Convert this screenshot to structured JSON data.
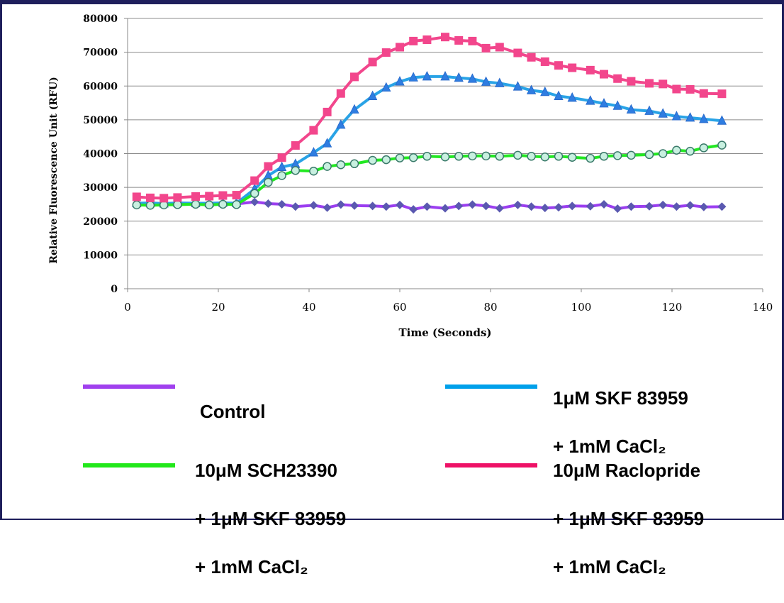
{
  "chart_data": {
    "type": "line",
    "xlabel": "Time (Seconds)",
    "ylabel": "Relative Fluorescence Unit (RFU)",
    "xlim": [
      0,
      140
    ],
    "ylim": [
      0,
      80000
    ],
    "xticks": [
      0,
      20,
      40,
      60,
      80,
      100,
      120,
      140
    ],
    "yticks": [
      0,
      10000,
      20000,
      30000,
      40000,
      50000,
      60000,
      70000,
      80000
    ],
    "grid": "horizontal",
    "legend_position": "bottom",
    "series": [
      {
        "name": "Control",
        "color": "#9b3ef0",
        "marker": "diamond",
        "marker_color": "#5a58b0",
        "x": [
          2,
          5,
          8,
          11,
          15,
          18,
          21,
          24,
          28,
          31,
          34,
          37,
          41,
          44,
          47,
          50,
          54,
          57,
          60,
          63,
          66,
          70,
          73,
          76,
          79,
          82,
          86,
          89,
          92,
          95,
          98,
          102,
          105,
          108,
          111,
          115,
          118,
          121,
          124,
          127,
          131
        ],
        "y": [
          24900,
          24800,
          24900,
          25200,
          25100,
          25000,
          25100,
          25100,
          25700,
          25200,
          25000,
          24300,
          24700,
          24000,
          24900,
          24600,
          24500,
          24300,
          24800,
          23500,
          24300,
          23800,
          24500,
          24900,
          24500,
          23800,
          24800,
          24300,
          23900,
          24100,
          24500,
          24400,
          25000,
          23700,
          24300,
          24400,
          24800,
          24300,
          24700,
          24200,
          24300
        ]
      },
      {
        "name": "1μM SKF 83959 + 1mM CaCl2",
        "color": "#29a3e6",
        "marker": "triangle",
        "marker_color": "#2f7de1",
        "x": [
          2,
          5,
          8,
          11,
          15,
          18,
          21,
          24,
          28,
          31,
          34,
          37,
          41,
          44,
          47,
          50,
          54,
          57,
          60,
          63,
          66,
          70,
          73,
          76,
          79,
          82,
          86,
          89,
          92,
          95,
          98,
          102,
          105,
          108,
          111,
          115,
          118,
          121,
          124,
          127,
          131
        ],
        "y": [
          25300,
          25400,
          25200,
          25400,
          25300,
          25300,
          25400,
          25300,
          29500,
          33500,
          36000,
          36900,
          40300,
          43000,
          48500,
          53000,
          57000,
          59500,
          61300,
          62500,
          62800,
          62800,
          62400,
          62100,
          61200,
          60800,
          59800,
          58700,
          58200,
          57000,
          56500,
          55600,
          54800,
          54100,
          53000,
          52600,
          51800,
          51000,
          50600,
          50200,
          49700
        ]
      },
      {
        "name": "10μM SCH23390 + 1μM SKF 83959 + 1mM CaCl2",
        "color": "#22e822",
        "marker": "circle",
        "marker_color": "#c8f0e0",
        "x": [
          2,
          5,
          8,
          11,
          15,
          18,
          21,
          24,
          28,
          31,
          34,
          37,
          41,
          44,
          47,
          50,
          54,
          57,
          60,
          63,
          66,
          70,
          73,
          76,
          79,
          82,
          86,
          89,
          92,
          95,
          98,
          102,
          105,
          108,
          111,
          115,
          118,
          121,
          124,
          127,
          131
        ],
        "y": [
          24800,
          24700,
          24800,
          24900,
          25000,
          24800,
          25000,
          24900,
          28200,
          31500,
          33500,
          35000,
          34800,
          36200,
          36700,
          37000,
          38000,
          38200,
          38700,
          38800,
          39200,
          39000,
          39200,
          39300,
          39300,
          39200,
          39500,
          39200,
          39000,
          39200,
          38900,
          38600,
          39200,
          39400,
          39500,
          39700,
          40000,
          41000,
          40700,
          41700,
          42500
        ]
      },
      {
        "name": "10μM Raclopride + 1μM SKF 83959 + 1mM CaCl2",
        "color": "#f2468c",
        "marker": "square",
        "marker_color": "#f2468c",
        "x": [
          2,
          5,
          8,
          11,
          15,
          18,
          21,
          24,
          28,
          31,
          34,
          37,
          41,
          44,
          47,
          50,
          54,
          57,
          60,
          63,
          66,
          70,
          73,
          76,
          79,
          82,
          86,
          89,
          92,
          95,
          98,
          102,
          105,
          108,
          111,
          115,
          118,
          121,
          124,
          127,
          131
        ],
        "y": [
          27200,
          26900,
          26800,
          27000,
          27300,
          27400,
          27600,
          27700,
          32000,
          36200,
          38800,
          42400,
          46900,
          52300,
          57800,
          62700,
          67100,
          69900,
          71500,
          73300,
          73700,
          74500,
          73500,
          73300,
          71200,
          71500,
          69800,
          68500,
          67200,
          66100,
          65400,
          64700,
          63500,
          62200,
          61400,
          60800,
          60600,
          59100,
          59000,
          57800,
          57700
        ]
      }
    ]
  },
  "legend": [
    {
      "label_lines": [
        "Control"
      ],
      "color": "#a040ee"
    },
    {
      "label_lines": [
        "1μM SKF 83959",
        "+ 1mM CaCl₂"
      ],
      "color": "#00a0ea"
    },
    {
      "label_lines": [
        "10μM SCH23390",
        "+ 1μM SKF 83959",
        "+ 1mM CaCl₂"
      ],
      "color": "#22e81a"
    },
    {
      "label_lines": [
        "10μM Raclopride",
        "+ 1μM SKF 83959",
        "+ 1mM CaCl₂"
      ],
      "color": "#ee1166"
    }
  ]
}
